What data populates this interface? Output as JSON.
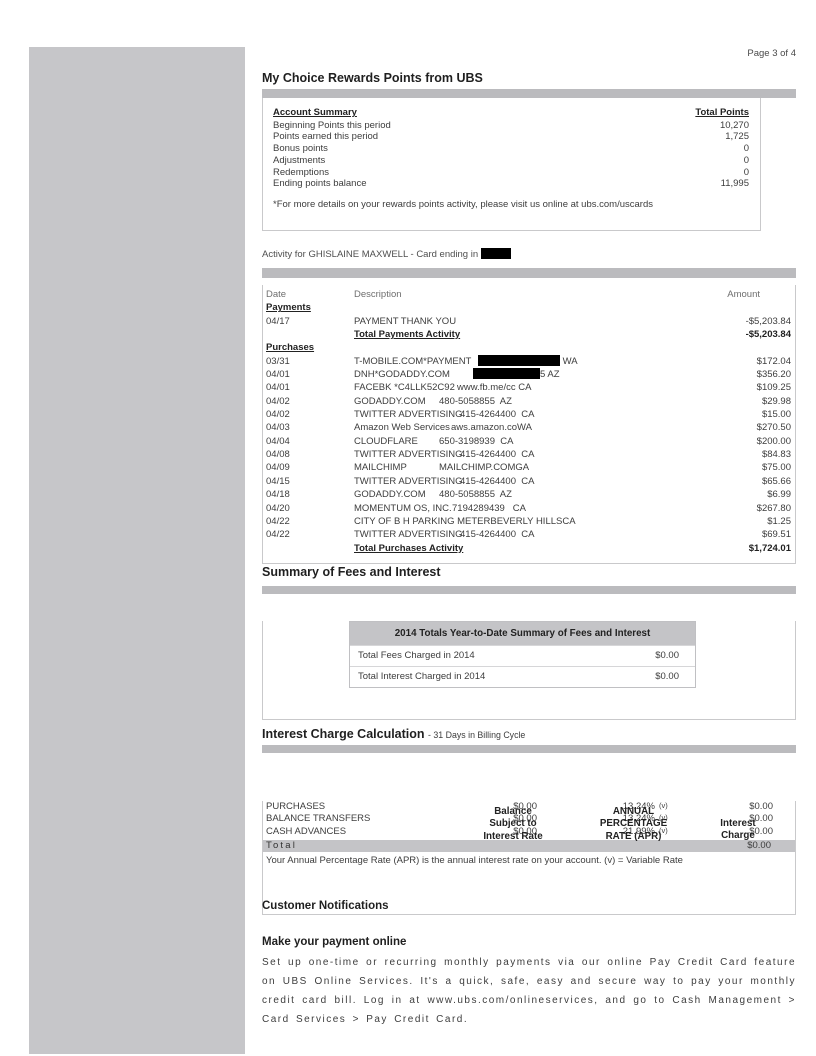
{
  "colors": {
    "bar_gray": "#bbbbbe",
    "header_gray": "#c4c4c7",
    "panel_gray": "#c6c6c9",
    "border_gray": "#c9c9cb",
    "redaction_black": "#000000"
  },
  "page_label": "Page 3 of 4",
  "rewards": {
    "title": "My Choice Rewards Points from UBS",
    "account_summary_label": "Account Summary",
    "total_points_label": "Total Points",
    "rows": [
      {
        "label": "Beginning Points this period",
        "value": "10,270"
      },
      {
        "label": "Points earned this period",
        "value": "1,725"
      },
      {
        "label": "Bonus points",
        "value": "0"
      },
      {
        "label": "Adjustments",
        "value": "0"
      },
      {
        "label": "Redemptions",
        "value": "0"
      },
      {
        "label": "Ending points balance",
        "value": "11,995"
      }
    ],
    "footnote": "*For more details on your rewards points activity, please visit us online at ubs.com/uscards"
  },
  "activity": {
    "title": "Activity for GHISLAINE MAXWELL - Card ending in",
    "headers": {
      "date": "Date",
      "description": "Description",
      "amount": "Amount"
    },
    "payments_label": "Payments",
    "payments": [
      {
        "date": "04/17",
        "c1": "PAYMENT THANK YOU",
        "amount": "-$5,203.84"
      }
    ],
    "payments_total": {
      "label": "Total Payments Activity",
      "amount": "-$5,203.84"
    },
    "purchases_label": "Purchases",
    "purchases": [
      {
        "date": "03/31",
        "c1": "T-MOBILE.COM*PAYMENT",
        "c1_w": 124,
        "redact": 82,
        "c2": " WA",
        "amount": "$172.04"
      },
      {
        "date": "04/01",
        "c1": "DNH*GODADDY.COM",
        "c1_w": 119,
        "redact": 67,
        "c2": "5 AZ",
        "amount": "$356.20"
      },
      {
        "date": "04/01",
        "c1": "FACEBK *C4LLK52C92",
        "c1_w": 103,
        "c2": "www.fb.me/cc CA",
        "amount": "$109.25"
      },
      {
        "date": "04/02",
        "c1": "GODADDY.COM",
        "c1_w": 85,
        "c2": "480-5058855  AZ",
        "amount": "$29.98"
      },
      {
        "date": "04/02",
        "c1": "TWITTER ADVERTISING",
        "c1_w": 106,
        "c2": "415-4264400  CA",
        "amount": "$15.00"
      },
      {
        "date": "04/03",
        "c1": "Amazon Web Services",
        "c1_w": 97,
        "c2": "aws.amazon.coWA",
        "amount": "$270.50"
      },
      {
        "date": "04/04",
        "c1": "CLOUDFLARE",
        "c1_w": 85,
        "c2": "650-3198939  CA",
        "amount": "$200.00"
      },
      {
        "date": "04/08",
        "c1": "TWITTER ADVERTISING",
        "c1_w": 106,
        "c2": "415-4264400  CA",
        "amount": "$84.83"
      },
      {
        "date": "04/09",
        "c1": "MAILCHIMP",
        "c1_w": 85,
        "c2": "MAILCHIMP.COMGA",
        "amount": "$75.00"
      },
      {
        "date": "04/15",
        "c1": "TWITTER ADVERTISING",
        "c1_w": 106,
        "c2": "415-4264400  CA",
        "amount": "$65.66"
      },
      {
        "date": "04/18",
        "c1": "GODADDY.COM",
        "c1_w": 85,
        "c2": "480-5058855  AZ",
        "amount": "$6.99"
      },
      {
        "date": "04/20",
        "c1": "MOMENTUM OS, INC.",
        "c1_w": 98,
        "c2": "7194289439   CA",
        "amount": "$267.80"
      },
      {
        "date": "04/22",
        "c1": "CITY OF B H PARKING METERBEVERLY HILLSCA",
        "amount": "$1.25"
      },
      {
        "date": "04/22",
        "c1": "TWITTER ADVERTISING",
        "c1_w": 106,
        "c2": "415-4264400  CA",
        "amount": "$69.51"
      }
    ],
    "purchases_total": {
      "label": "Total Purchases Activity",
      "amount": "$1,724.01"
    }
  },
  "fees": {
    "title": "Summary of Fees and Interest",
    "table_title": "2014 Totals Year-to-Date Summary of Fees and Interest",
    "rows": [
      {
        "label": "Total Fees Charged in 2014",
        "value": "$0.00"
      },
      {
        "label": "Total Interest Charged in 2014",
        "value": "$0.00"
      }
    ]
  },
  "interest": {
    "title": "Interest Charge Calculation",
    "subtitle": "- 31 Days in Billing Cycle",
    "balance_header": "Balance\nSubject to\nInterest Rate",
    "apr_header": "ANNUAL\nPERCENTAGE\nRATE (APR)",
    "charge_header": "Interest\nCharge",
    "rows": [
      {
        "label": "PURCHASES",
        "balance": "$0.00",
        "apr": "13.24%",
        "note": "(v)",
        "charge": "$0.00"
      },
      {
        "label": "BALANCE TRANSFERS",
        "balance": "$0.00",
        "apr": "13.24%",
        "note": "(v)",
        "charge": "$0.00"
      },
      {
        "label": "CASH ADVANCES",
        "balance": "$0.00",
        "apr": "21.99%",
        "note": "(v)",
        "charge": "$0.00"
      }
    ],
    "total_label": "Total",
    "total_amount": "$0.00",
    "footnote": "Your Annual Percentage Rate (APR) is the annual interest rate on your account.  (v) = Variable Rate"
  },
  "notifications": {
    "title": "Customer Notifications",
    "subtitle": "Make your payment online",
    "body": "Set up one-time or recurring monthly payments via our online Pay Credit Card feature on UBS Online Services. It's a quick, safe, easy and secure way to pay your monthly credit card bill. Log in at www.ubs.com/onlineservices, and go to Cash Management > Card Services > Pay Credit Card."
  }
}
